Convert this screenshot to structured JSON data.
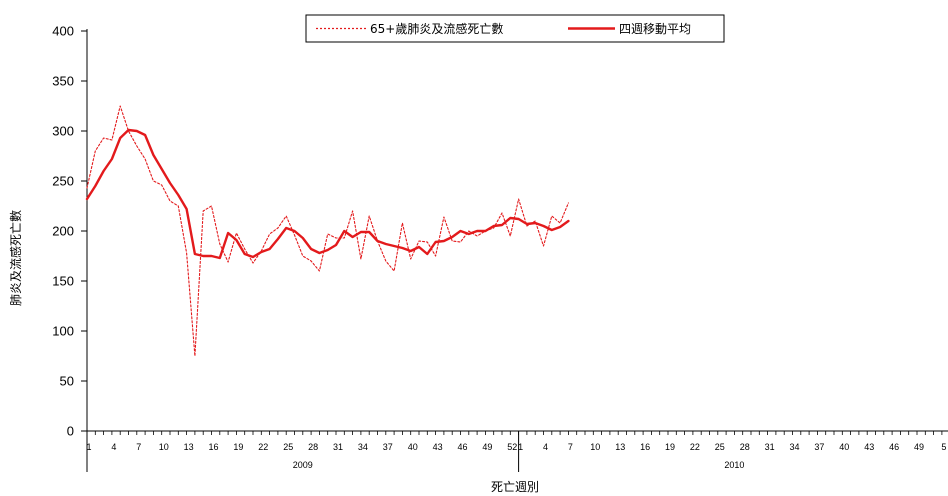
{
  "chart_data": {
    "type": "line",
    "xlabel": "死亡週別",
    "ylabel": "肺炎及流感死亡數",
    "ylim": [
      0,
      400
    ],
    "yticks": [
      0,
      50,
      100,
      150,
      200,
      250,
      300,
      350,
      400
    ],
    "x_tick_labels_2009": [
      "1",
      "4",
      "7",
      "10",
      "13",
      "16",
      "19",
      "22",
      "25",
      "28",
      "31",
      "34",
      "37",
      "40",
      "43",
      "46",
      "49",
      "52"
    ],
    "x_tick_labels_2010": [
      "1",
      "4",
      "7",
      "10",
      "13",
      "16",
      "19",
      "22",
      "25",
      "28",
      "31",
      "34",
      "37",
      "40",
      "43",
      "46",
      "49",
      "5"
    ],
    "years": [
      "2009",
      "2010"
    ],
    "legend": [
      "65+歲肺炎及流感死亡數",
      "四週移動平均"
    ],
    "series": [
      {
        "name": "65+歲肺炎及流感死亡數",
        "style": "dotted",
        "color": "#e31a1c",
        "values": [
          243,
          280,
          293,
          291,
          325,
          300,
          285,
          272,
          250,
          246,
          230,
          225,
          178,
          75,
          220,
          225,
          187,
          169,
          198,
          182,
          168,
          180,
          197,
          203,
          215,
          196,
          175,
          170,
          160,
          197,
          193,
          193,
          220,
          172,
          215,
          190,
          170,
          160,
          208,
          172,
          190,
          189,
          175,
          214,
          190,
          189,
          200,
          195,
          200,
          203,
          218,
          195,
          232,
          205,
          210,
          185,
          215,
          208,
          228
        ]
      },
      {
        "name": "四週移動平均",
        "style": "solid",
        "color": "#e31a1c",
        "values": [
          232,
          245,
          260,
          272,
          293,
          301,
          300,
          296,
          276,
          262,
          248,
          236,
          222,
          177,
          175,
          175,
          173,
          198,
          191,
          177,
          174,
          179,
          182,
          192,
          203,
          200,
          193,
          182,
          178,
          181,
          186,
          200,
          194,
          199,
          199,
          190,
          187,
          185,
          183,
          180,
          184,
          177,
          189,
          190,
          194,
          200,
          197,
          200,
          200,
          205,
          206,
          213,
          212,
          207,
          208,
          205,
          201,
          204,
          210
        ]
      }
    ]
  }
}
